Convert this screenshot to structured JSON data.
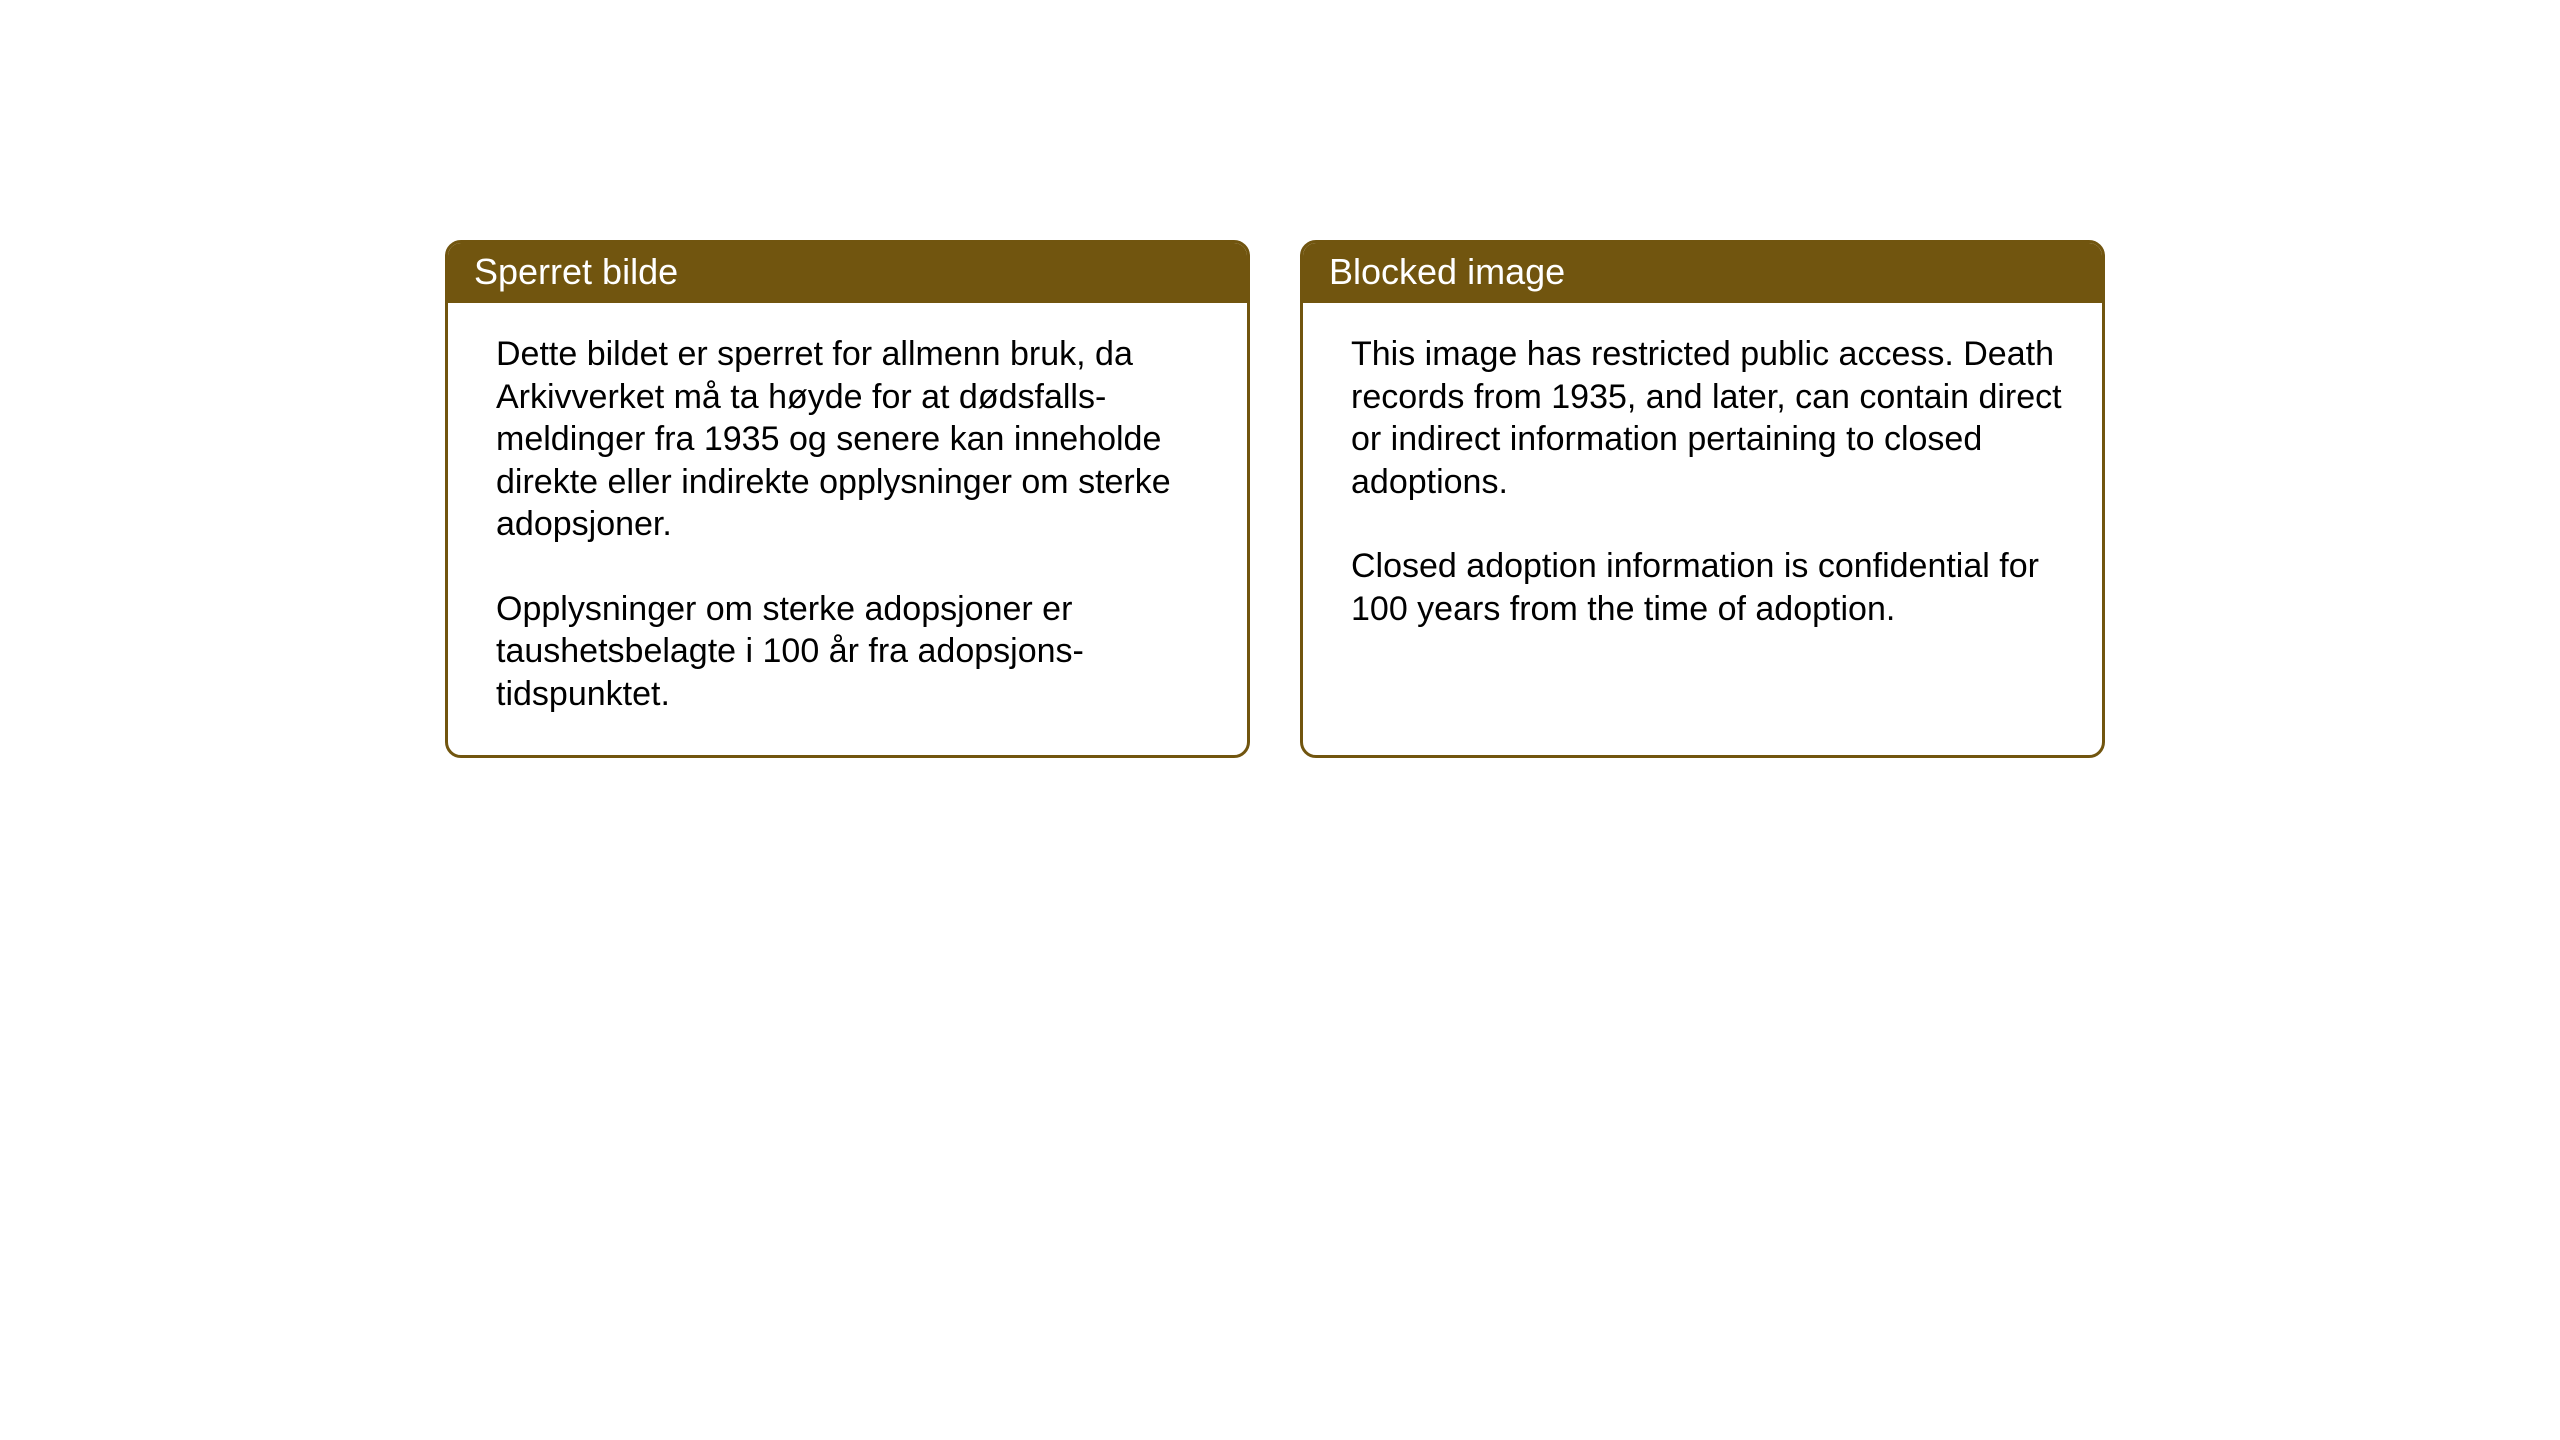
{
  "notices": {
    "norwegian": {
      "title": "Sperret bilde",
      "paragraph1": "Dette bildet er sperret for allmenn bruk, da Arkivverket må ta høyde for at dødsfalls-meldinger fra 1935 og senere kan inneholde direkte eller indirekte opplysninger om sterke adopsjoner.",
      "paragraph2": "Opplysninger om sterke adopsjoner er taushetsbelagte i 100 år fra adopsjons-tidspunktet."
    },
    "english": {
      "title": "Blocked image",
      "paragraph1": "This image has restricted public access. Death records from 1935, and later, can contain direct or indirect information pertaining to closed adoptions.",
      "paragraph2": "Closed adoption information is confidential for 100 years from the time of adoption."
    }
  },
  "styling": {
    "header_bg_color": "#71550f",
    "header_text_color": "#ffffff",
    "border_color": "#71550f",
    "body_bg_color": "#ffffff",
    "body_text_color": "#000000",
    "page_bg_color": "#ffffff",
    "header_fontsize": 36,
    "body_fontsize": 34,
    "border_radius": 16,
    "border_width": 3
  }
}
